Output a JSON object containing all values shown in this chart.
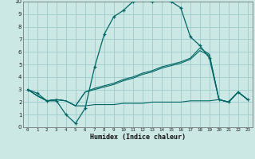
{
  "xlabel": "Humidex (Indice chaleur)",
  "bg_color": "#cce8e4",
  "grid_color": "#99cccc",
  "line_color": "#006666",
  "xlim": [
    -0.5,
    23.5
  ],
  "ylim": [
    0,
    10
  ],
  "xticks": [
    0,
    1,
    2,
    3,
    4,
    5,
    6,
    7,
    8,
    9,
    10,
    11,
    12,
    13,
    14,
    15,
    16,
    17,
    18,
    19,
    20,
    21,
    22,
    23
  ],
  "yticks": [
    0,
    1,
    2,
    3,
    4,
    5,
    6,
    7,
    8,
    9,
    10
  ],
  "line1_x": [
    0,
    1,
    2,
    3,
    4,
    5,
    6,
    7,
    8,
    9,
    10,
    11,
    12,
    13,
    14,
    15,
    16,
    17,
    18,
    19,
    20,
    21,
    22,
    23
  ],
  "line1_y": [
    3.0,
    2.7,
    2.1,
    2.1,
    1.0,
    0.3,
    1.5,
    4.8,
    7.4,
    8.8,
    9.3,
    10.0,
    10.1,
    10.0,
    10.1,
    10.0,
    9.5,
    7.2,
    6.5,
    5.5,
    2.2,
    2.0,
    2.8,
    2.2
  ],
  "line2_x": [
    0,
    1,
    2,
    3,
    4,
    5,
    6,
    7,
    8,
    9,
    10,
    11,
    12,
    13,
    14,
    15,
    16,
    17,
    18,
    19,
    20,
    21,
    22,
    23
  ],
  "line2_y": [
    3.0,
    2.5,
    2.1,
    2.2,
    2.1,
    1.7,
    2.8,
    3.1,
    3.3,
    3.5,
    3.8,
    4.0,
    4.3,
    4.5,
    4.8,
    5.0,
    5.2,
    5.5,
    6.3,
    5.8,
    2.2,
    2.0,
    2.8,
    2.2
  ],
  "line3_x": [
    0,
    1,
    2,
    3,
    4,
    5,
    6,
    7,
    8,
    9,
    10,
    11,
    12,
    13,
    14,
    15,
    16,
    17,
    18,
    19,
    20,
    21,
    22,
    23
  ],
  "line3_y": [
    3.0,
    2.5,
    2.1,
    2.2,
    2.1,
    1.7,
    2.8,
    3.0,
    3.2,
    3.4,
    3.7,
    3.9,
    4.2,
    4.4,
    4.7,
    4.9,
    5.1,
    5.4,
    6.1,
    5.7,
    2.2,
    2.0,
    2.8,
    2.2
  ],
  "line4_x": [
    0,
    1,
    2,
    3,
    4,
    5,
    6,
    7,
    8,
    9,
    10,
    11,
    12,
    13,
    14,
    15,
    16,
    17,
    18,
    19,
    20,
    21,
    22,
    23
  ],
  "line4_y": [
    3.0,
    2.5,
    2.1,
    2.2,
    2.1,
    1.7,
    1.7,
    1.8,
    1.8,
    1.8,
    1.9,
    1.9,
    1.9,
    2.0,
    2.0,
    2.0,
    2.0,
    2.1,
    2.1,
    2.1,
    2.2,
    2.0,
    2.8,
    2.2
  ]
}
